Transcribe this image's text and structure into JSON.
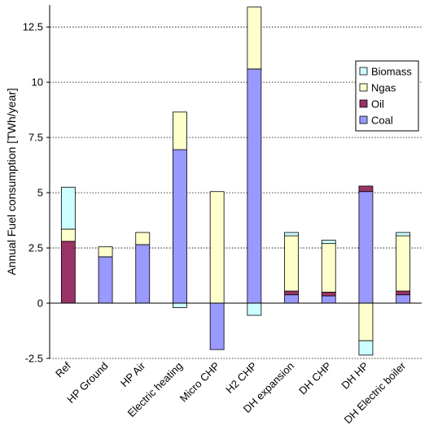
{
  "chart_data": {
    "type": "bar",
    "stacked": true,
    "title": "",
    "xlabel": "",
    "ylabel": "Annual Fuel consumption [TWh/year]",
    "ylim": [
      -2.5,
      13.5
    ],
    "yticks": [
      "-2.5",
      "0",
      "2.5",
      "5",
      "7.5",
      "10",
      "12.5"
    ],
    "grid": "horizontal dotted",
    "legend_position": "top-right",
    "categories": [
      "Ref",
      "HP Ground",
      "HP Air",
      "Electric heating",
      "Micro CHP",
      "H2 CHP",
      "DH expansion",
      "DH CHP",
      "DH HP",
      "DH Electric boiler"
    ],
    "series": [
      {
        "name": "Coal",
        "color": "#9999ff",
        "values": [
          0,
          2.1,
          2.65,
          6.95,
          -2.1,
          10.6,
          0.38,
          0.33,
          5.05,
          0.38
        ]
      },
      {
        "name": "Oil",
        "color": "#993366",
        "values": [
          2.8,
          0,
          0,
          0,
          0,
          0,
          0.17,
          0.17,
          0.25,
          0.17
        ]
      },
      {
        "name": "Ngas",
        "color": "#ffffcc",
        "values": [
          0.55,
          0.45,
          0.55,
          1.7,
          5.05,
          2.8,
          2.5,
          2.2,
          -1.7,
          2.5
        ]
      },
      {
        "name": "Biomass",
        "color": "#ccffff",
        "values": [
          1.9,
          0,
          0,
          -0.2,
          0,
          -0.55,
          0.15,
          0.15,
          -0.65,
          0.15
        ]
      }
    ],
    "legend_order": [
      "Biomass",
      "Ngas",
      "Oil",
      "Coal"
    ]
  }
}
